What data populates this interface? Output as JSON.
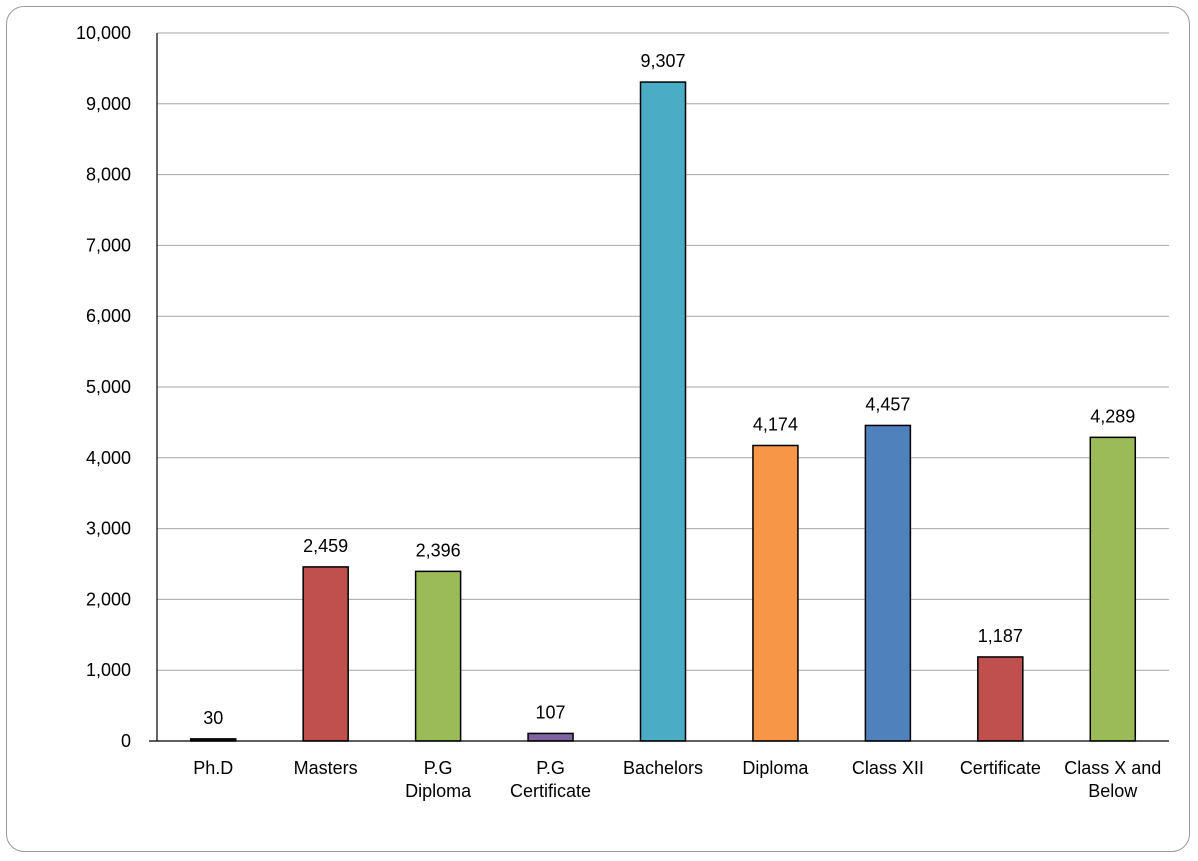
{
  "chart_data": {
    "type": "bar",
    "title": "",
    "xlabel": "",
    "ylabel": "",
    "ylim": [
      0,
      10000
    ],
    "y_ticks": [
      "0",
      "1,000",
      "2,000",
      "3,000",
      "4,000",
      "5,000",
      "6,000",
      "7,000",
      "8,000",
      "9,000",
      "10,000"
    ],
    "y_tick_values": [
      0,
      1000,
      2000,
      3000,
      4000,
      5000,
      6000,
      7000,
      8000,
      9000,
      10000
    ],
    "grid": true,
    "legend": "none",
    "categories": [
      [
        "Ph.D"
      ],
      [
        "Masters"
      ],
      [
        "P.G",
        "Diploma"
      ],
      [
        "P.G",
        "Certificate"
      ],
      [
        "Bachelors"
      ],
      [
        "Diploma"
      ],
      [
        "Class XII"
      ],
      [
        "Certificate"
      ],
      [
        "Class X and",
        "Below"
      ]
    ],
    "values": [
      30,
      2459,
      2396,
      107,
      9307,
      4174,
      4457,
      1187,
      4289
    ],
    "data_labels": [
      "30",
      "2,459",
      "2,396",
      "107",
      "9,307",
      "4,174",
      "4,457",
      "1,187",
      "4,289"
    ],
    "colors": [
      "#1f1f1f",
      "#c0504d",
      "#9bbb59",
      "#8064a2",
      "#4bacc6",
      "#f79646",
      "#4f81bd",
      "#c0504d",
      "#9bbb59"
    ],
    "gridline_color": "#a6a6a6",
    "axis_color": "#000000"
  }
}
